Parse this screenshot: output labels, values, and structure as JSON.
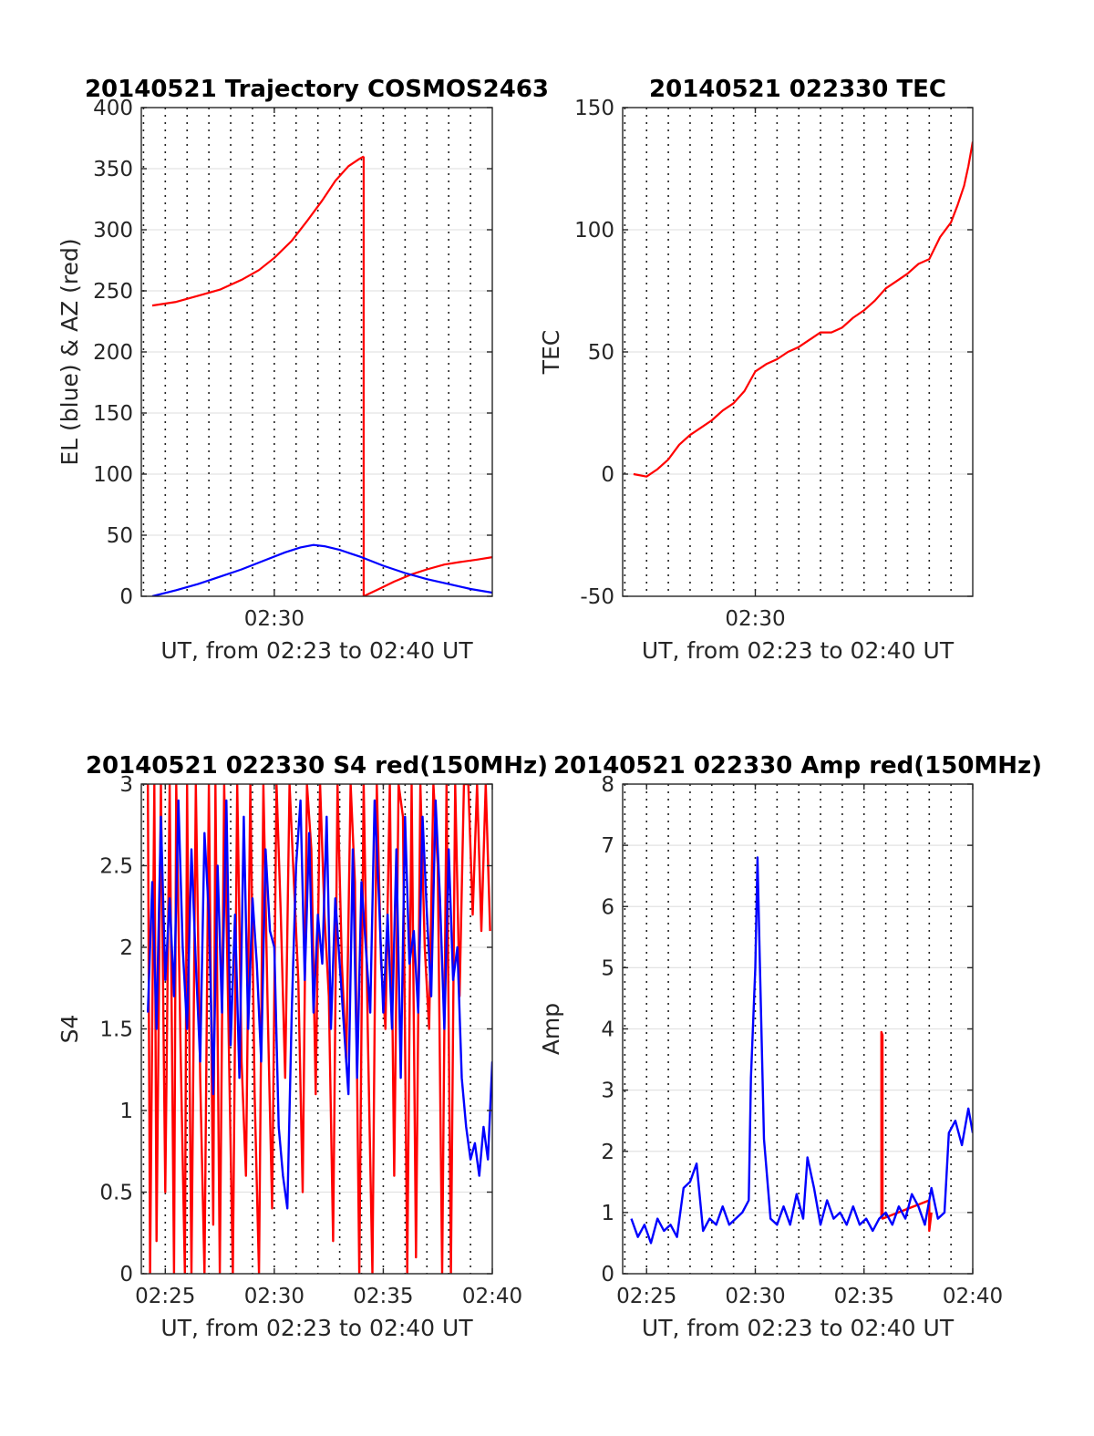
{
  "chart_data": [
    {
      "type": "line",
      "title": "20140521 Trajectory COSMOS2463",
      "xlabel": "UT, from 02:23 to 02:40 UT",
      "ylabel": "EL (blue) & AZ (red)",
      "xlim": [
        23.9,
        40.0
      ],
      "ylim": [
        0,
        400
      ],
      "grid": true,
      "xticks": [
        30
      ],
      "xtick_labels": [
        "02:30"
      ],
      "yticks": [
        0,
        50,
        100,
        150,
        200,
        250,
        300,
        350,
        400
      ],
      "series": [
        {
          "color": "#ff0000",
          "x": [
            24.4,
            25.5,
            26.5,
            27.5,
            28.5,
            29.3,
            30.0,
            30.8,
            31.5,
            32.2,
            32.8,
            33.4,
            33.9,
            34.1
          ],
          "values": [
            238,
            241,
            246,
            251,
            259,
            267,
            277,
            291,
            307,
            324,
            340,
            352,
            358,
            360
          ]
        },
        {
          "color": "#ff0000",
          "x": [
            34.1,
            34.1,
            34.8,
            35.5,
            36.3,
            37.0,
            37.8,
            38.5,
            39.3,
            40.0
          ],
          "values": [
            360,
            0,
            6,
            12,
            18,
            22,
            26,
            28,
            30,
            32
          ]
        },
        {
          "color": "#0000ff",
          "x": [
            24.4,
            25.5,
            26.5,
            27.5,
            28.5,
            29.5,
            30.5,
            31.2,
            31.8,
            32.3,
            33.0,
            34.0,
            35.0,
            36.0,
            37.0,
            38.0,
            39.0,
            40.0
          ],
          "values": [
            0,
            5,
            10,
            16,
            22,
            29,
            36,
            40,
            42,
            41,
            38,
            32,
            25,
            19,
            14,
            10,
            6,
            3
          ]
        }
      ]
    },
    {
      "type": "line",
      "title": "20140521 022330 TEC",
      "xlabel": "UT, from 02:23 to 02:40 UT",
      "ylabel": "TEC",
      "xlim": [
        23.9,
        40.0
      ],
      "ylim": [
        -50,
        150
      ],
      "grid": true,
      "xticks": [
        30
      ],
      "xtick_labels": [
        "02:30"
      ],
      "yticks": [
        -50,
        0,
        50,
        100,
        150
      ],
      "series": [
        {
          "color": "#ff0000",
          "x": [
            24.4,
            25.0,
            25.5,
            26.0,
            26.5,
            27.0,
            27.5,
            28.0,
            28.5,
            29.0,
            29.5,
            30.0,
            30.5,
            31.0,
            31.5,
            32.0,
            32.5,
            33.0,
            33.5,
            34.0,
            34.5,
            35.0,
            35.5,
            36.0,
            36.5,
            37.0,
            37.5,
            38.0,
            38.5,
            39.0,
            39.3,
            39.6,
            39.8,
            40.0
          ],
          "values": [
            0,
            -1,
            2,
            6,
            12,
            16,
            19,
            22,
            26,
            29,
            34,
            42,
            45,
            47,
            50,
            52,
            55,
            58,
            58,
            60,
            64,
            67,
            71,
            76,
            79,
            82,
            86,
            88,
            97,
            103,
            110,
            118,
            126,
            136
          ]
        }
      ]
    },
    {
      "type": "line",
      "title": "20140521 022330 S4 red(150MHz)",
      "xlabel": "UT, from 02:23 to 02:40 UT",
      "ylabel": "S4",
      "xlim": [
        23.9,
        40.0
      ],
      "ylim": [
        0,
        3
      ],
      "grid": true,
      "xticks": [
        25,
        30,
        35,
        40
      ],
      "xtick_labels": [
        "02:25",
        "02:30",
        "02:35",
        "02:40"
      ],
      "yticks": [
        0,
        0.5,
        1,
        1.5,
        2,
        2.5,
        3
      ],
      "series": [
        {
          "color": "#ff0000",
          "x": [
            24.2,
            24.3,
            24.5,
            24.6,
            24.8,
            25.0,
            25.2,
            25.4,
            25.5,
            25.7,
            25.9,
            26.0,
            26.2,
            26.4,
            26.6,
            26.8,
            27.0,
            27.2,
            27.3,
            27.5,
            27.7,
            27.9,
            28.1,
            28.3,
            28.5,
            28.7,
            28.9,
            29.1,
            29.3,
            29.5,
            29.7,
            29.9,
            30.1,
            30.3,
            30.5,
            30.7,
            30.9,
            31.1,
            31.3,
            31.5,
            31.7,
            31.9,
            32.1,
            32.3,
            32.5,
            32.7,
            32.9,
            33.1,
            33.3,
            33.5,
            33.7,
            33.9,
            34.1,
            34.3,
            34.5,
            34.7,
            34.9,
            35.1,
            35.3,
            35.5,
            35.7,
            35.9,
            36.1,
            36.3,
            36.5,
            36.7,
            36.9,
            37.1,
            37.3,
            37.5,
            37.7,
            37.9,
            38.1,
            38.3,
            38.5,
            38.7,
            38.9,
            39.1,
            39.3,
            39.5,
            39.7,
            39.9
          ],
          "values": [
            3,
            0,
            3,
            0.2,
            3,
            0.5,
            3,
            0,
            3,
            1.4,
            0,
            3,
            0,
            3,
            1.2,
            0,
            3,
            0.3,
            3,
            0,
            3,
            1.5,
            0,
            3,
            1.3,
            0.6,
            3,
            1.1,
            0,
            3,
            1.6,
            0.4,
            3,
            2.2,
            1.2,
            3,
            2.4,
            1.8,
            0.5,
            3,
            2.6,
            1.1,
            3,
            2.2,
            1.7,
            0.2,
            3,
            1.9,
            1.3,
            3,
            2.4,
            0,
            3,
            1.4,
            0,
            3,
            1.9,
            1.5,
            3,
            0.6,
            3,
            2.8,
            0,
            3,
            0.1,
            3,
            2.0,
            1.5,
            3,
            2.5,
            0,
            3,
            0,
            3,
            1.7,
            3,
            3,
            2.2,
            3,
            2.1,
            3,
            2.1
          ]
        },
        {
          "color": "#0000ff",
          "x": [
            24.2,
            24.4,
            24.6,
            24.8,
            25.0,
            25.2,
            25.4,
            25.6,
            25.8,
            26.0,
            26.2,
            26.4,
            26.6,
            26.8,
            27.0,
            27.2,
            27.4,
            27.6,
            27.8,
            28.0,
            28.2,
            28.4,
            28.6,
            28.8,
            29.0,
            29.2,
            29.4,
            29.6,
            29.8,
            30.0,
            30.2,
            30.4,
            30.6,
            30.8,
            31.0,
            31.2,
            31.4,
            31.6,
            31.8,
            32.0,
            32.2,
            32.4,
            32.6,
            32.8,
            33.0,
            33.2,
            33.4,
            33.6,
            33.8,
            34.0,
            34.2,
            34.4,
            34.6,
            34.8,
            35.0,
            35.2,
            35.4,
            35.6,
            35.8,
            36.0,
            36.2,
            36.4,
            36.6,
            36.8,
            37.0,
            37.2,
            37.4,
            37.6,
            37.8,
            38.0,
            38.2,
            38.4,
            38.6,
            38.8,
            39.0,
            39.2,
            39.4,
            39.6,
            39.8,
            40.0
          ],
          "values": [
            1.6,
            2.4,
            1.5,
            2.8,
            1.8,
            2.3,
            1.7,
            2.9,
            2.0,
            1.5,
            2.6,
            1.9,
            1.3,
            2.7,
            2.2,
            1.1,
            2.5,
            1.6,
            2.9,
            1.4,
            2.2,
            1.2,
            2.8,
            1.5,
            2.3,
            1.9,
            1.3,
            2.6,
            2.1,
            2.0,
            0.9,
            0.6,
            0.4,
            1.6,
            2.5,
            2.9,
            1.8,
            2.7,
            1.6,
            2.2,
            1.9,
            2.8,
            1.5,
            2.3,
            1.9,
            1.5,
            1.1,
            2.6,
            1.2,
            2.4,
            2.0,
            1.6,
            2.9,
            2.3,
            1.6,
            2.2,
            1.5,
            2.6,
            1.2,
            2.8,
            1.9,
            2.1,
            1.6,
            2.8,
            2.2,
            1.7,
            2.9,
            2.3,
            1.5,
            2.6,
            1.8,
            2.0,
            1.2,
            0.9,
            0.7,
            0.8,
            0.6,
            0.9,
            0.7,
            1.3
          ]
        }
      ]
    },
    {
      "type": "line",
      "title": "20140521 022330 Amp red(150MHz)",
      "xlabel": "UT, from 02:23 to 02:40 UT",
      "ylabel": "Amp",
      "xlim": [
        23.9,
        40.0
      ],
      "ylim": [
        0,
        8
      ],
      "grid": true,
      "xticks": [
        25,
        30,
        35,
        40
      ],
      "xtick_labels": [
        "02:25",
        "02:30",
        "02:35",
        "02:40"
      ],
      "yticks": [
        0,
        1,
        2,
        3,
        4,
        5,
        6,
        7,
        8
      ],
      "series": [
        {
          "color": "#ff0000",
          "x": [
            35.8,
            35.8,
            35.85,
            35.85,
            38.0,
            38.0,
            38.1
          ],
          "values": [
            0.9,
            3.95,
            3.9,
            0.9,
            1.2,
            0.7,
            1.0
          ]
        },
        {
          "color": "#0000ff",
          "x": [
            24.3,
            24.6,
            24.9,
            25.2,
            25.5,
            25.8,
            26.1,
            26.4,
            26.7,
            27.0,
            27.3,
            27.6,
            27.9,
            28.2,
            28.5,
            28.8,
            29.1,
            29.4,
            29.7,
            29.8,
            30.0,
            30.1,
            30.2,
            30.4,
            30.7,
            31.0,
            31.3,
            31.6,
            31.9,
            32.2,
            32.4,
            32.7,
            33.0,
            33.3,
            33.6,
            33.9,
            34.2,
            34.5,
            34.8,
            35.1,
            35.4,
            35.7,
            36.0,
            36.3,
            36.6,
            36.9,
            37.2,
            37.5,
            37.8,
            38.1,
            38.4,
            38.7,
            38.9,
            39.2,
            39.5,
            39.8,
            40.0
          ],
          "values": [
            0.9,
            0.6,
            0.8,
            0.5,
            0.9,
            0.7,
            0.8,
            0.6,
            1.4,
            1.5,
            1.8,
            0.7,
            0.9,
            0.8,
            1.1,
            0.8,
            0.9,
            1.0,
            1.2,
            3.2,
            5.0,
            6.8,
            5.2,
            2.2,
            0.9,
            0.8,
            1.1,
            0.8,
            1.3,
            0.9,
            1.9,
            1.4,
            0.8,
            1.2,
            0.9,
            1.0,
            0.8,
            1.1,
            0.8,
            0.9,
            0.7,
            0.9,
            1.0,
            0.8,
            1.1,
            0.9,
            1.3,
            1.1,
            0.8,
            1.4,
            0.9,
            1.0,
            2.3,
            2.5,
            2.1,
            2.7,
            2.3
          ]
        }
      ]
    }
  ]
}
